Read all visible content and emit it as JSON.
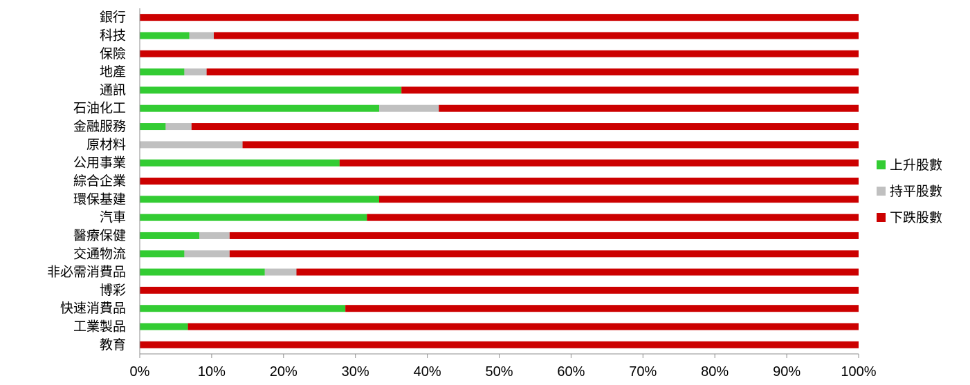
{
  "chart_data": {
    "type": "bar",
    "orientation": "horizontal",
    "stacked": "percent",
    "categories": [
      "銀行",
      "科技",
      "保險",
      "地產",
      "通訊",
      "石油化工",
      "金融服務",
      "原材料",
      "公用事業",
      "綜合企業",
      "環保基建",
      "汽車",
      "醫療保健",
      "交通物流",
      "非必需消費品",
      "博彩",
      "快速消費品",
      "工業製品",
      "教育"
    ],
    "series": [
      {
        "name": "上升股數",
        "color": "#33cc33",
        "values": [
          0,
          6.9,
          0,
          6.2,
          36.4,
          33.3,
          3.6,
          0,
          27.8,
          0,
          33.3,
          31.6,
          8.3,
          6.2,
          17.4,
          0,
          28.6,
          6.7,
          0
        ]
      },
      {
        "name": "持平股數",
        "color": "#c0c0c0",
        "values": [
          0,
          3.4,
          0,
          3.1,
          0,
          8.3,
          3.6,
          14.3,
          0,
          0,
          0,
          0,
          4.2,
          6.3,
          4.4,
          0,
          0,
          0,
          0
        ]
      },
      {
        "name": "下跌股數",
        "color": "#cc0000",
        "values": [
          100,
          89.7,
          100,
          90.7,
          63.6,
          58.4,
          92.8,
          85.7,
          72.2,
          100,
          66.7,
          68.4,
          87.5,
          87.5,
          78.2,
          100,
          71.4,
          93.3,
          100
        ]
      }
    ],
    "xlim": [
      0,
      100
    ],
    "xticks": [
      "0%",
      "10%",
      "20%",
      "30%",
      "40%",
      "50%",
      "60%",
      "70%",
      "80%",
      "90%",
      "100%"
    ],
    "legend": "right",
    "grid": false
  }
}
